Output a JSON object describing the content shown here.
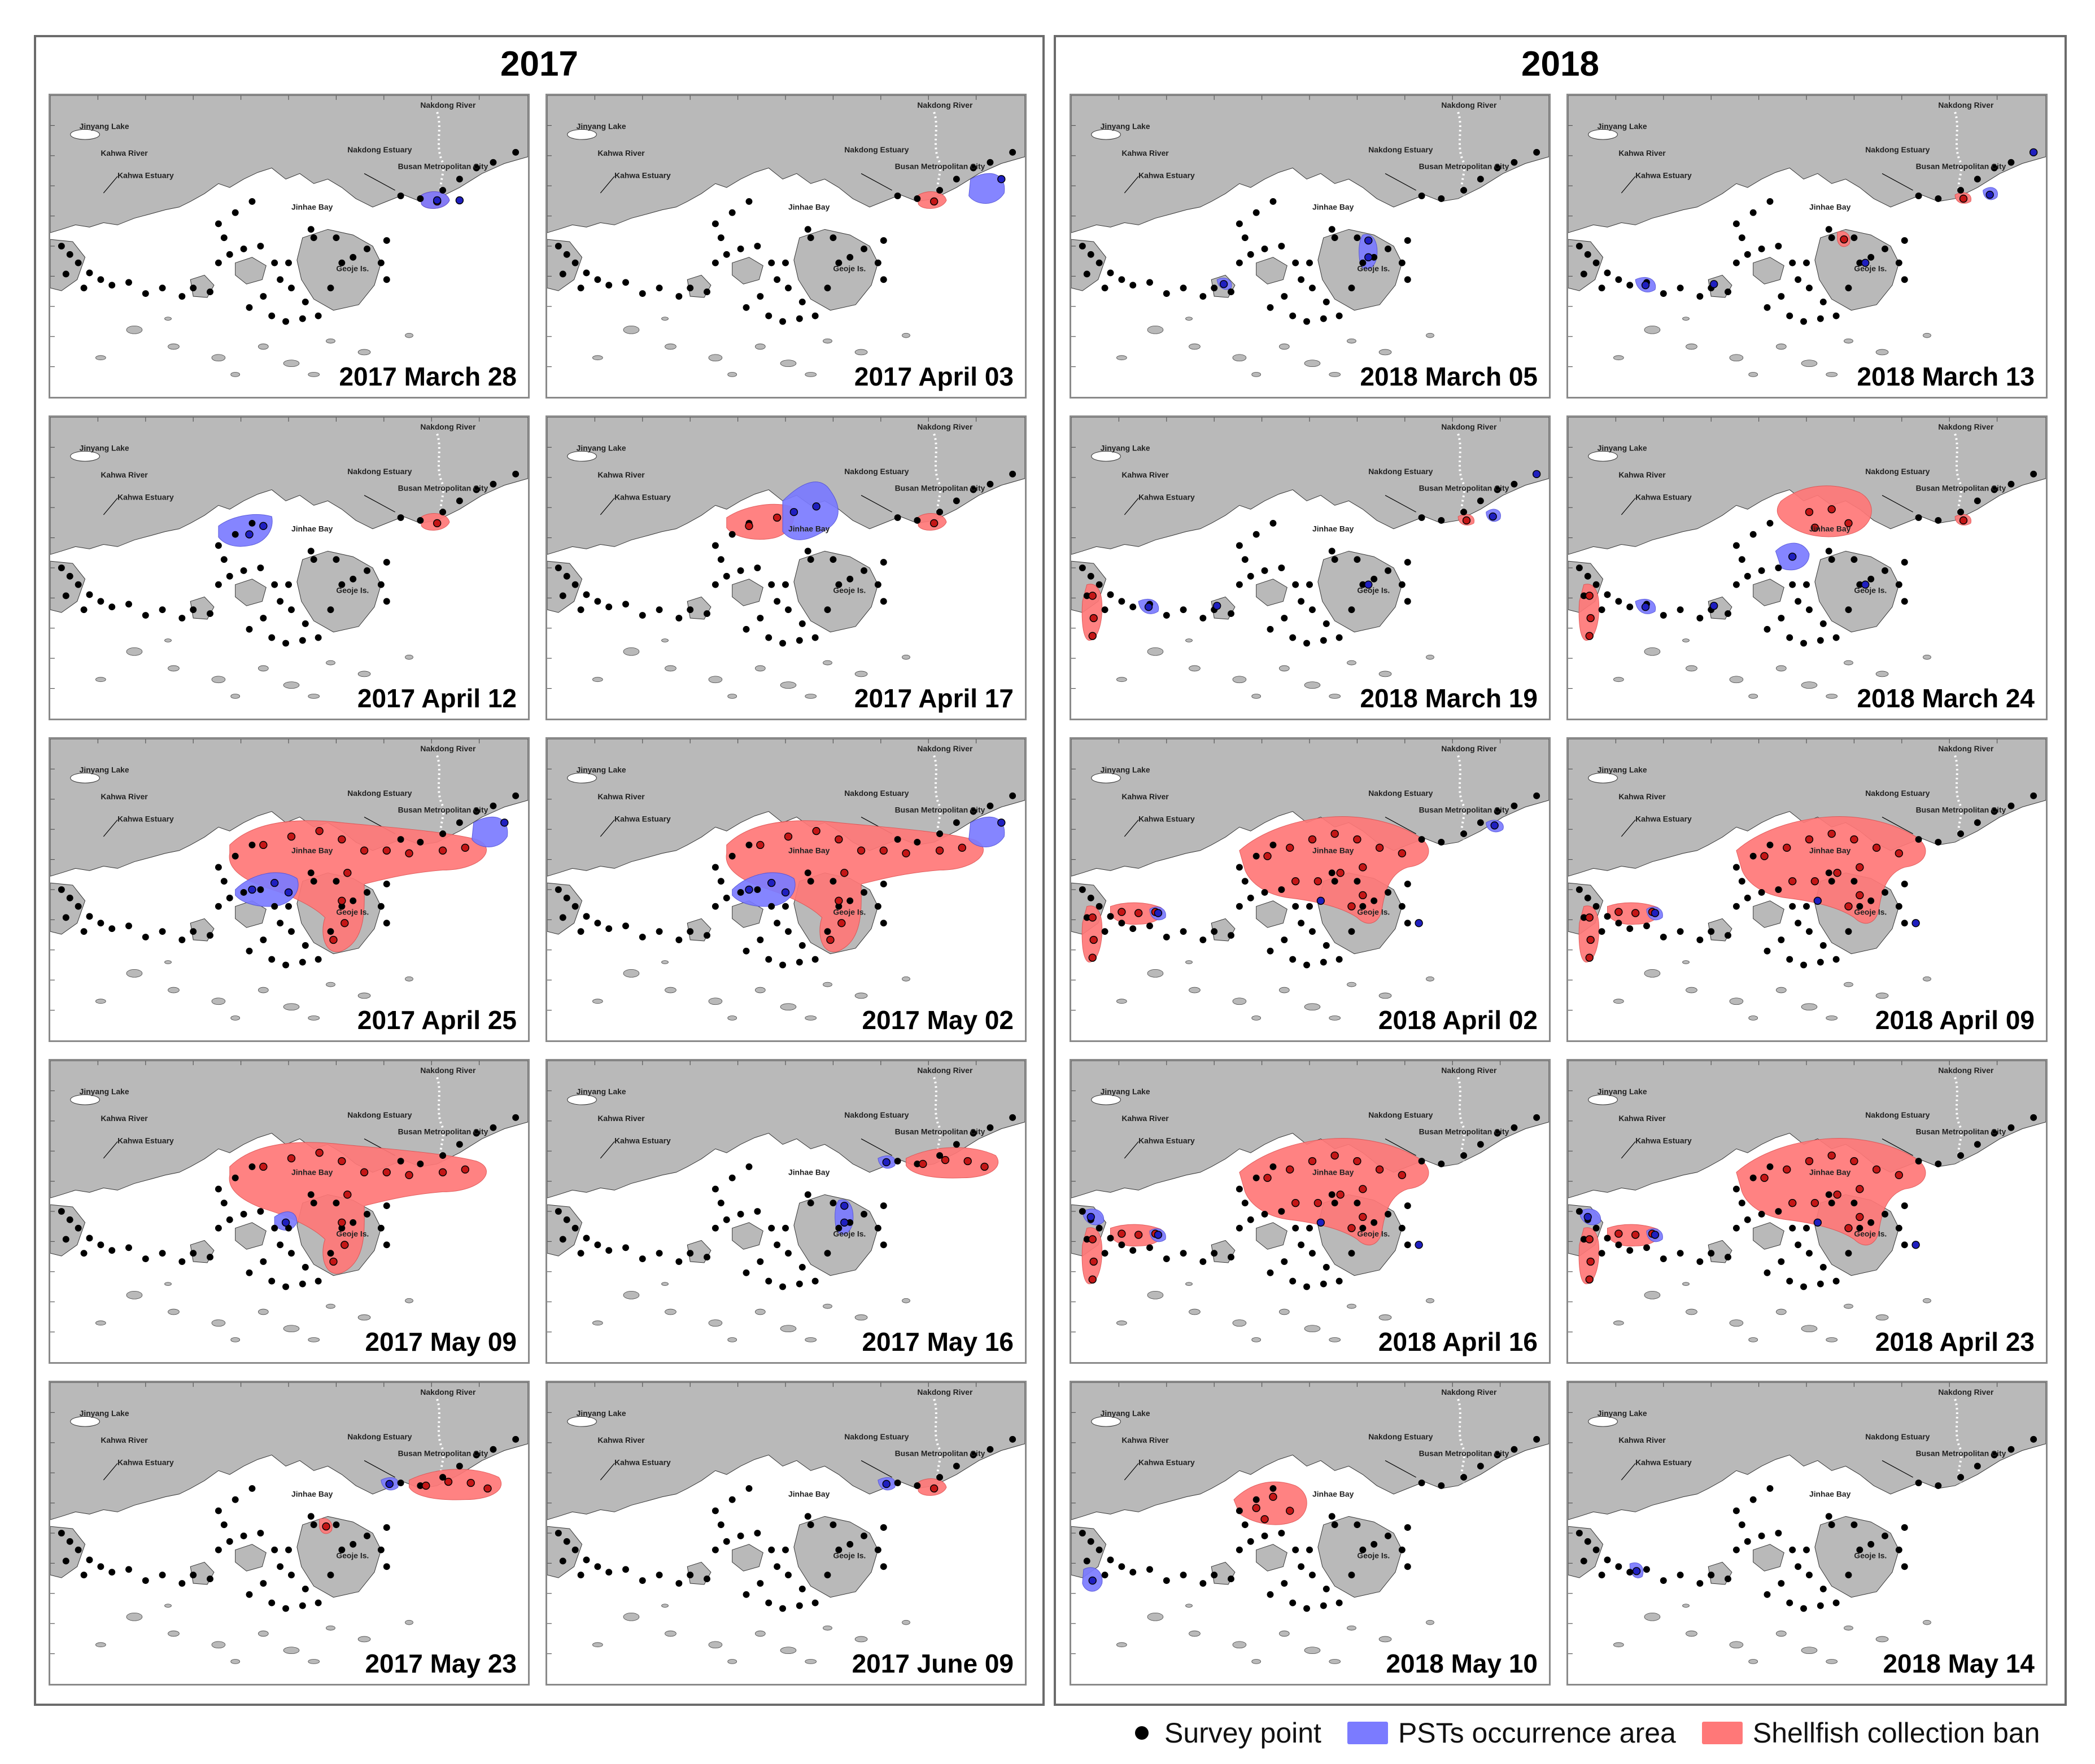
{
  "years": [
    {
      "title": "2017",
      "maps": [
        {
          "date": "2017 March 28",
          "pst": [
            "E1"
          ],
          "ban": [
            "B1"
          ]
        },
        {
          "date": "2017 April 03",
          "pst": [
            "E2"
          ],
          "ban": [
            "B1"
          ]
        },
        {
          "date": "2017 April 12",
          "pst": [
            "J1"
          ],
          "ban": [
            "B1"
          ]
        },
        {
          "date": "2017 April 17",
          "pst": [
            "J2"
          ],
          "ban": [
            "J3",
            "B1"
          ]
        },
        {
          "date": "2017 April 25",
          "pst": [
            "E2",
            "J4"
          ],
          "ban": [
            "W1"
          ]
        },
        {
          "date": "2017 May 02",
          "pst": [
            "E2",
            "J4"
          ],
          "ban": [
            "W1"
          ]
        },
        {
          "date": "2017 May 09",
          "pst": [
            "J5"
          ],
          "ban": [
            "W1"
          ]
        },
        {
          "date": "2017 May 16",
          "pst": [
            "N2",
            "G1"
          ],
          "ban": [
            "N1"
          ]
        },
        {
          "date": "2017 May 23",
          "pst": [
            "N2"
          ],
          "ban": [
            "N1",
            "G2"
          ]
        },
        {
          "date": "2017 June 09",
          "pst": [
            "N2"
          ],
          "ban": [
            "B1"
          ]
        }
      ]
    },
    {
      "title": "2018",
      "maps": [
        {
          "date": "2018 March 05",
          "pst": [
            "S1",
            "G1"
          ],
          "ban": []
        },
        {
          "date": "2018 March 13",
          "pst": [
            "S2",
            "E3"
          ],
          "ban": [
            "G2",
            "B2"
          ]
        },
        {
          "date": "2018 March 19",
          "pst": [
            "S2",
            "E3"
          ],
          "ban": [
            "Wc",
            "B2"
          ]
        },
        {
          "date": "2018 March 24",
          "pst": [
            "S2",
            "J6"
          ],
          "ban": [
            "J7",
            "Wc",
            "B2"
          ]
        },
        {
          "date": "2018 April 02",
          "pst": [
            "S3",
            "N3"
          ],
          "ban": [
            "X1",
            "Wc",
            "Wb"
          ]
        },
        {
          "date": "2018 April 09",
          "pst": [
            "S3"
          ],
          "ban": [
            "X1",
            "Wc",
            "Wb"
          ]
        },
        {
          "date": "2018 April 16",
          "pst": [
            "S3",
            "Ws"
          ],
          "ban": [
            "X1",
            "Wc",
            "Wb"
          ]
        },
        {
          "date": "2018 April 23",
          "pst": [
            "S3",
            "Ws"
          ],
          "ban": [
            "X1",
            "Wc",
            "Wb"
          ]
        },
        {
          "date": "2018 May 10",
          "pst": [
            "Sw"
          ],
          "ban": [
            "J8"
          ]
        },
        {
          "date": "2018 May 14",
          "pst": [
            "Sw2"
          ],
          "ban": []
        }
      ]
    }
  ],
  "map_labels": {
    "jinyang_lake": "Jinyang Lake",
    "kahwa_river": "Kahwa River",
    "kahwa_estuary": "Kahwa Estuary",
    "nakdong_river": "Nakdong River",
    "nakdong_estuary": "Nakdong Estuary",
    "busan": "Busan Metropolitan City",
    "jinhae_bay": "Jinhae Bay",
    "geoje": "Geoje Is."
  },
  "legend": {
    "survey_point": "Survey point",
    "pst_area": "PSTs occurrence area",
    "ban_area": "Shellfish collection ban"
  },
  "colors": {
    "pst": "#7b7bff",
    "ban": "#ff7878",
    "land": "#b9b9b9",
    "point": "#000000",
    "pst_point": "#1f1fbf",
    "ban_point": "#c41616"
  }
}
